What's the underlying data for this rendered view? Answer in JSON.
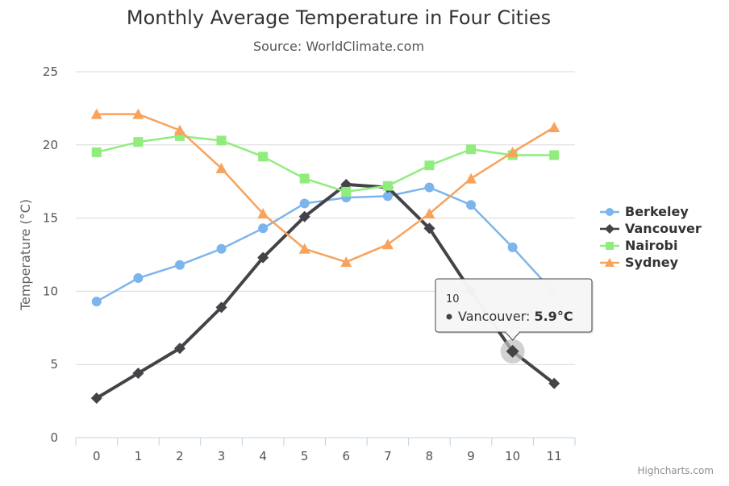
{
  "chart_data": {
    "type": "line",
    "title": "Monthly Average Temperature in Four Cities",
    "subtitle": "Source: WorldClimate.com",
    "xlabel": "",
    "ylabel": "Temperature (°C)",
    "categories": [
      "0",
      "1",
      "2",
      "3",
      "4",
      "5",
      "6",
      "7",
      "8",
      "9",
      "10",
      "11"
    ],
    "ylim": [
      0,
      25
    ],
    "yticks": [
      "0",
      "5",
      "10",
      "15",
      "20",
      "25"
    ],
    "grid": true,
    "legend_position": "right",
    "series": [
      {
        "name": "Berkeley",
        "marker": "circle",
        "color": "#7cb5ec",
        "values": [
          9.3,
          10.9,
          11.8,
          12.9,
          14.3,
          16.0,
          16.4,
          16.5,
          17.1,
          15.9,
          13.0,
          9.9
        ]
      },
      {
        "name": "Vancouver",
        "marker": "diamond",
        "color": "#434348",
        "values": [
          2.7,
          4.4,
          6.1,
          8.9,
          12.3,
          15.1,
          17.3,
          17.1,
          14.3,
          10.0,
          5.9,
          3.7
        ]
      },
      {
        "name": "Nairobi",
        "marker": "square",
        "color": "#90ed7d",
        "values": [
          19.5,
          20.2,
          20.6,
          20.3,
          19.2,
          17.7,
          16.8,
          17.2,
          18.6,
          19.7,
          19.3,
          19.3
        ]
      },
      {
        "name": "Sydney",
        "marker": "triangle",
        "color": "#f7a35c",
        "values": [
          22.1,
          22.1,
          21.0,
          18.4,
          15.3,
          12.9,
          12.0,
          13.2,
          15.3,
          17.7,
          19.5,
          21.2
        ]
      }
    ],
    "tooltip": {
      "header": "10",
      "series": "Vancouver",
      "label": "Vancouver: ",
      "value": "5.9°C"
    }
  },
  "credits": "Highcharts.com"
}
